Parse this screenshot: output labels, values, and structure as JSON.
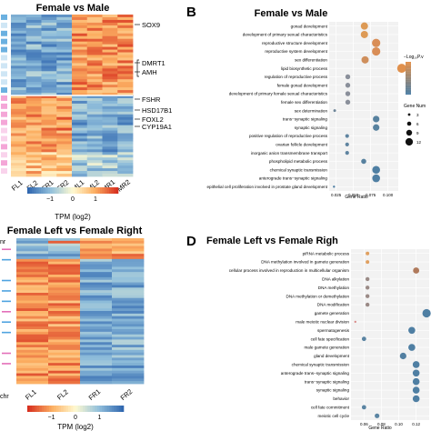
{
  "panels": {
    "A": {
      "title": "Female vs Male",
      "columns": [
        "FL1",
        "FL2",
        "FR1",
        "FR2",
        "ML1",
        "ML2",
        "MR1",
        "MR2"
      ],
      "genes": [
        "SOX9",
        "DMRT1",
        "AMH",
        "FSHR",
        "HSD17B1",
        "FOXL2",
        "CYP19A1"
      ],
      "colorbar": {
        "title": "TPM (log2)",
        "ticks": [
          "−1",
          "0",
          "1"
        ]
      }
    },
    "B": {
      "letter": "B",
      "title": "Female vs Male",
      "xlabel": "Gene Ratio",
      "xticks": [
        "0.025",
        "0.050",
        "0.075",
        "0.100"
      ],
      "legend_color_title": "−Log₁₀P.v",
      "legend_size_title": "Gene Num",
      "size_ticks": [
        "3",
        "6",
        "9",
        "12"
      ],
      "terms": [
        "gonad development",
        "development of primary sexual characteristics",
        "reproductive structure development",
        "reproductive system development",
        "sex differentiation",
        "lipid biosynthetic process",
        "regulation of reproductive process",
        "female gonad development",
        "development of primary female sexual characteristics",
        "female sex differentiation",
        "sex determination",
        "trans−synaptic signaling",
        "synaptic signaling",
        "positive regulation of reproductive process",
        "ovarian follicle development",
        "inorganic anion transmembrane transport",
        "phospholipid metabolic process",
        "chemical synaptic transmission",
        "anterograde trans−synaptic signaling",
        "epithelial cell proliferation involved in prostate gland development"
      ]
    },
    "C": {
      "title": "Female Left vs Female Right",
      "legend_fragment": "nr",
      "side_label": "chr",
      "columns": [
        "FL1",
        "FL2",
        "FR1",
        "FR2"
      ],
      "colorbar": {
        "title": "TPM (log2)",
        "ticks": [
          "−1",
          "0",
          "1"
        ]
      }
    },
    "D": {
      "letter": "D",
      "title": "Female Left vs Female Righ",
      "xlabel": "Gene Ratio",
      "xticks": [
        "0.06",
        "0.08",
        "0.10",
        "0.12"
      ],
      "terms": [
        "piRNA metabolic process",
        "DNA methylation involved in gamete generation",
        "cellular process involved in reproduction in multicellular organism",
        "DNA alkylation",
        "DNA methylation",
        "DNA methylation or demethylation",
        "DNA modification",
        "gamete generation",
        "male meiotic nuclear division",
        "spermatogenesis",
        "cell fate specification",
        "male gamete generation",
        "gland development",
        "chemical synaptic transmission",
        "anterograde trans−synaptic signaling",
        "trans−synaptic signaling",
        "synaptic signaling",
        "behavior",
        "cell fate commitment",
        "meiotic cell cycle"
      ]
    }
  },
  "colors": {
    "high": "#d7301f",
    "mid": "#fbe29a",
    "low": "#3b6fb6",
    "dot_high": "#e0904c",
    "dot_low": "#4f7fa3"
  }
}
